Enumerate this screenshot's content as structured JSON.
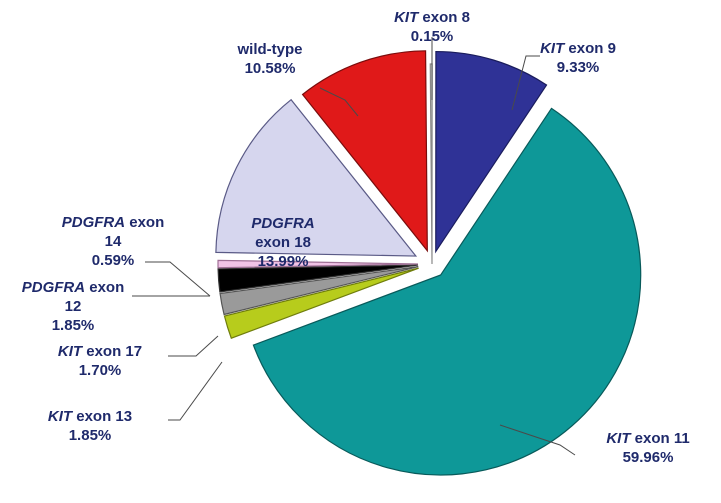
{
  "chart_data": {
    "type": "pie",
    "title": "",
    "exploded": true,
    "slices": [
      {
        "gene": "KIT",
        "name": "exon 8",
        "value": 0.15,
        "value_label": "0.15%",
        "color": "#dcdcdc"
      },
      {
        "gene": "KIT",
        "name": "exon 9",
        "value": 9.33,
        "value_label": "9.33%",
        "color": "#2f3296"
      },
      {
        "gene": "KIT",
        "name": "exon 11",
        "value": 59.96,
        "value_label": "59.96%",
        "color": "#0e9898"
      },
      {
        "gene": "KIT",
        "name": "exon 13",
        "value": 1.85,
        "value_label": "1.85%",
        "color": "#b7cc1c"
      },
      {
        "gene": "KIT",
        "name": "exon 17",
        "value": 1.7,
        "value_label": "1.70%",
        "color": "#9a9a9a"
      },
      {
        "gene": "PDGFRA",
        "name": "exon 12",
        "value": 1.85,
        "value_label": "1.85%",
        "color": "#000000"
      },
      {
        "gene": "PDGFRA",
        "name": "exon 14",
        "value": 0.59,
        "value_label": "0.59%",
        "color": "#f1c3e6"
      },
      {
        "gene": "PDGFRA",
        "name": "exon 18",
        "value": 13.99,
        "value_label": "13.99%",
        "color": "#d6d6ee"
      },
      {
        "gene": "",
        "name": "wild-type",
        "value": 10.58,
        "value_label": "10.58%",
        "color": "#e01919"
      }
    ]
  }
}
